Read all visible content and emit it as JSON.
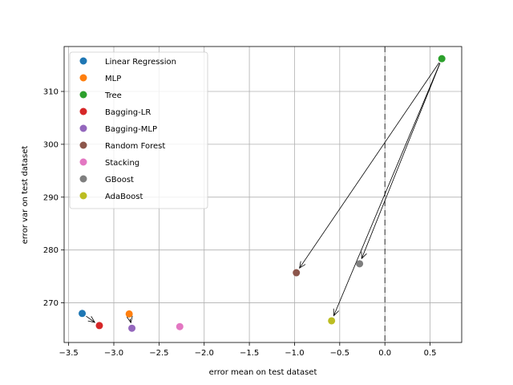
{
  "chart_data": {
    "type": "scatter",
    "xlabel": "error mean on test dataset",
    "ylabel": "error var on test dataset",
    "xlim": [
      -3.55,
      0.85
    ],
    "ylim": [
      262.5,
      318.5
    ],
    "xticks": [
      -3.5,
      -3.0,
      -2.5,
      -2.0,
      -1.5,
      -1.0,
      -0.5,
      0.0,
      0.5
    ],
    "xtick_labels": [
      "−3.5",
      "−3.0",
      "−2.5",
      "−2.0",
      "−1.5",
      "−1.0",
      "−0.5",
      "0.0",
      "0.5"
    ],
    "yticks": [
      270,
      280,
      290,
      300,
      310
    ],
    "ytick_labels": [
      "270",
      "280",
      "290",
      "300",
      "310"
    ],
    "grid": true,
    "legend_position": "top-left",
    "vertical_reference_line": {
      "x": 0.0,
      "style": "dashed"
    },
    "series": [
      {
        "name": "Linear Regression",
        "color": "#1f77b4",
        "x": -3.35,
        "y": 268.0
      },
      {
        "name": "MLP",
        "color": "#ff7f0e",
        "x": -2.83,
        "y": 267.9
      },
      {
        "name": "Tree",
        "color": "#2ca02c",
        "x": 0.63,
        "y": 316.2
      },
      {
        "name": "Bagging-LR",
        "color": "#d62728",
        "x": -3.16,
        "y": 265.7
      },
      {
        "name": "Bagging-MLP",
        "color": "#9467bd",
        "x": -2.8,
        "y": 265.2
      },
      {
        "name": "Random Forest",
        "color": "#8c564b",
        "x": -0.98,
        "y": 275.7
      },
      {
        "name": "Stacking",
        "color": "#e377c2",
        "x": -2.27,
        "y": 265.5
      },
      {
        "name": "GBoost",
        "color": "#7f7f7f",
        "x": -0.28,
        "y": 277.4
      },
      {
        "name": "AdaBoost",
        "color": "#bcbd22",
        "x": -0.59,
        "y": 266.6
      }
    ],
    "arrows": [
      {
        "from": "Linear Regression",
        "to": "Bagging-LR"
      },
      {
        "from": "MLP",
        "to": "Bagging-MLP"
      },
      {
        "from": "Tree",
        "to": "Random Forest"
      },
      {
        "from": "Tree",
        "to": "GBoost"
      },
      {
        "from": "Tree",
        "to": "AdaBoost"
      }
    ]
  }
}
